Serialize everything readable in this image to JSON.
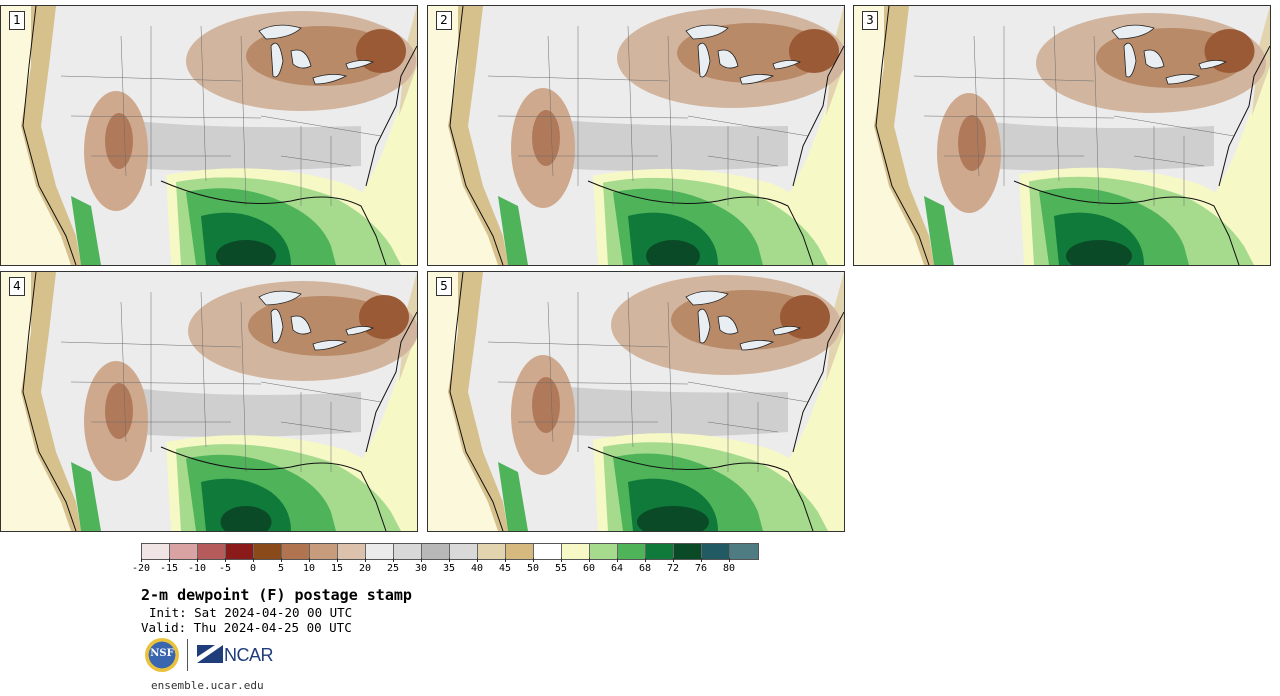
{
  "panels": [
    {
      "label": "1"
    },
    {
      "label": "2"
    },
    {
      "label": "3"
    },
    {
      "label": "4"
    },
    {
      "label": "5"
    }
  ],
  "colorbar": {
    "colors": [
      "#f1e4e4",
      "#d9a3a3",
      "#b65b5b",
      "#8b1a1a",
      "#8a4a1a",
      "#b07550",
      "#c79c7c",
      "#dcc2ad",
      "#ebebeb",
      "#d8d8d8",
      "#b8b8b8",
      "#d9d9d9",
      "#e3d4b0",
      "#d6b97f",
      "#ffffff",
      "#f6f8c6",
      "#a6db8e",
      "#4fb35a",
      "#0f7a3a",
      "#0b4a27",
      "#215a63",
      "#4f7c82"
    ],
    "tick_labels": [
      "-20",
      "-15",
      "-10",
      "-5",
      "0",
      "5",
      "10",
      "15",
      "20",
      "25",
      "30",
      "35",
      "40",
      "45",
      "50",
      "55",
      "60",
      "64",
      "68",
      "72",
      "76",
      "80"
    ]
  },
  "title": "2-m dewpoint (F) postage stamp",
  "init": "Init: Sat 2024-04-20 00 UTC",
  "valid": "Valid: Thu 2024-04-25 00 UTC",
  "logos": {
    "nsf": "NSF",
    "ncar": "NCAR"
  },
  "website": "ensemble.ucar.edu"
}
